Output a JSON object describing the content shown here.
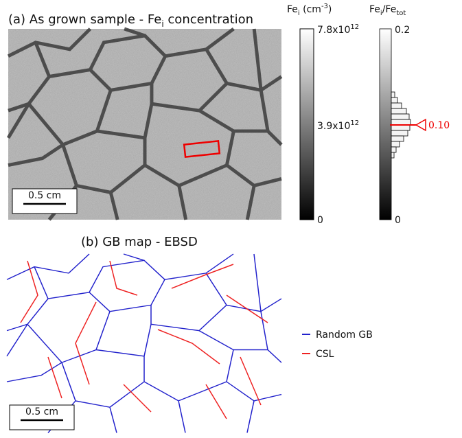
{
  "panel_a": {
    "title": {
      "main": "(a) As grown sample - Fe",
      "sub": "i",
      "rest": " concentration"
    },
    "scale_bar": "0.5 cm",
    "colorbar": {
      "label": {
        "main": "Fe",
        "sub": "i",
        "rest1": " (cm",
        "sup": "-3",
        "rest2": ")"
      },
      "ticks": [
        {
          "main": "7.8x10",
          "sup": "12"
        },
        {
          "main": "3.9x10",
          "sup": "12"
        },
        {
          "main": "0"
        }
      ]
    },
    "histogram": {
      "label": {
        "a": "Fe",
        "sub1": "i",
        "b": "/Fe",
        "sub2": "tot"
      },
      "ticks": [
        "0.2",
        "0"
      ],
      "marker": "0.10"
    }
  },
  "panel_b": {
    "title": "(b) GB map - EBSD",
    "scale_bar": "0.5 cm",
    "legend": [
      "Random GB",
      "CSL"
    ]
  }
}
